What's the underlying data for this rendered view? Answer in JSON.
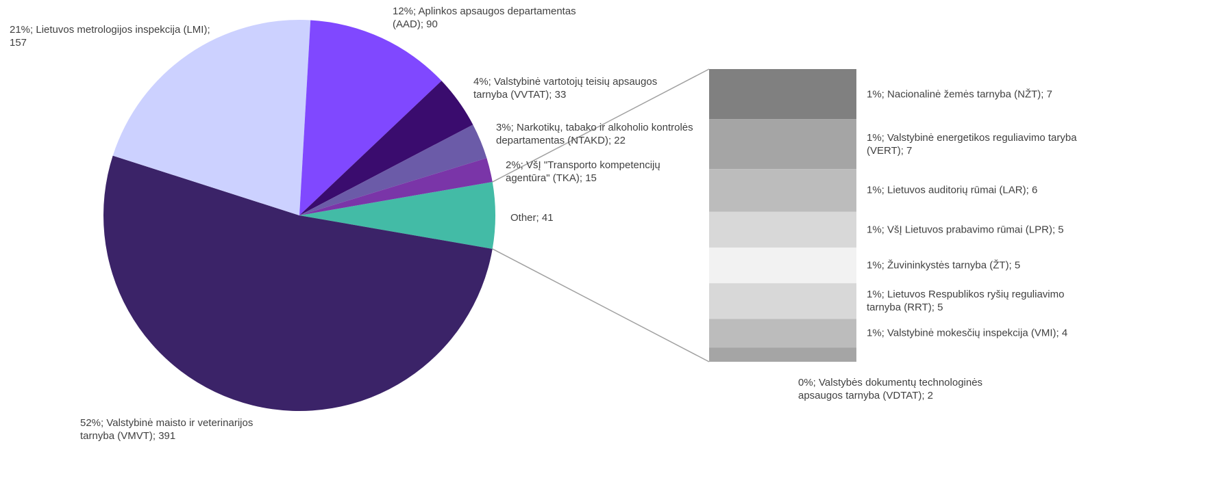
{
  "chart_data": {
    "type": "pie-of-bar",
    "series": [
      {
        "name": "pie",
        "values": [
          41,
          391,
          157,
          90,
          33,
          22,
          15
        ],
        "colors": [
          "#43bba6",
          "#3b2368",
          "#ccd1ff",
          "#8048ff",
          "#3a0c6e",
          "#6b5ba8",
          "#7a35a8"
        ],
        "value_labels": [
          "Other; 41",
          "52%; Valstybinė maisto ir veterinarijos tarnyba (VMVT); 391",
          "21%; Lietuvos metrologijos inspekcija (LMI); 157",
          "12%; Aplinkos apsaugos departamentas (AAD); 90",
          "4%; Valstybinė vartotojų teisių apsaugos tarnyba (VVTAT); 33",
          "3%; Narkotikų, tabako ir alkoholio kontrolės departamentas (NTAKD); 22",
          "2%; VšĮ \"Transporto kompetencijų agentūra\" (TKA); 15"
        ]
      },
      {
        "name": "bar",
        "values": [
          7,
          7,
          6,
          5,
          5,
          5,
          4,
          2
        ],
        "colors": [
          "#808080",
          "#a5a5a5",
          "#bcbcbc",
          "#d8d8d8",
          "#f2f2f2",
          "#d8d8d8",
          "#bcbcbc",
          "#a5a5a5"
        ],
        "value_labels": [
          "1%; Nacionalinė žemės tarnyba (NŽT); 7",
          "1%; Valstybinė energetikos reguliavimo taryba (VERT); 7",
          "1%; Lietuvos auditorių rūmai (LAR); 6",
          "1%; VšĮ Lietuvos prabavimo rūmai (LPR); 5",
          "1%; Žuvininkystės tarnyba (ŽT); 5",
          "1%; Lietuvos Respublikos ryšių reguliavimo tarnyba (RRT); 5",
          "1%; Valstybinė mokesčių inspekcija (VMI); 4",
          "0%; Valstybės dokumentų technologinės apsaugos tarnyba (VDTAT); 2"
        ]
      }
    ]
  }
}
